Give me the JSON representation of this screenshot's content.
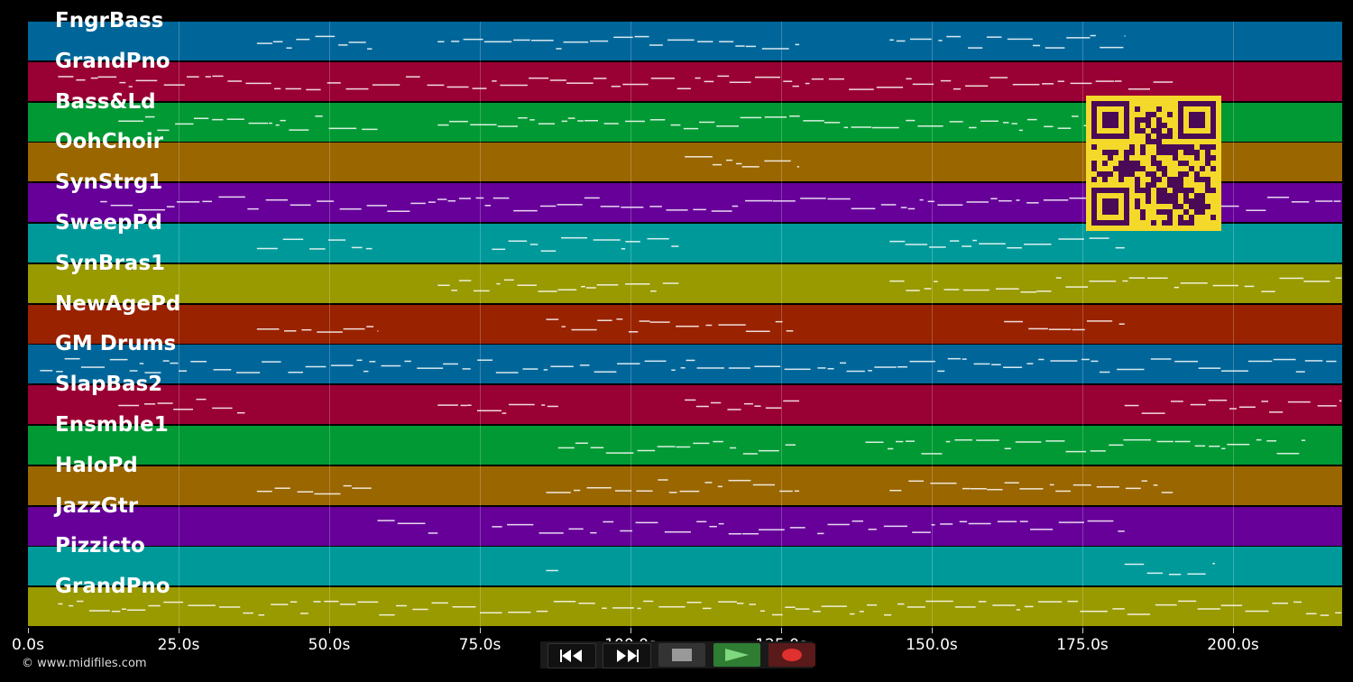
{
  "tracks": [
    {
      "name": "FngrBass",
      "color": "#006699"
    },
    {
      "name": "GrandPno",
      "color": "#990033"
    },
    {
      "name": "Bass&Ld",
      "color": "#009933"
    },
    {
      "name": "OohChoir",
      "color": "#996600"
    },
    {
      "name": "SynStrg1",
      "color": "#660099"
    },
    {
      "name": "SweepPd",
      "color": "#009999"
    },
    {
      "name": "SynBras1",
      "color": "#999900"
    },
    {
      "name": "NewAgePd",
      "color": "#992200"
    },
    {
      "name": "GM Drums",
      "color": "#006699"
    },
    {
      "name": "SlapBas2",
      "color": "#990033"
    },
    {
      "name": "Ensmble1",
      "color": "#009933"
    },
    {
      "name": "HaloPd",
      "color": "#996600"
    },
    {
      "name": "JazzGtr",
      "color": "#660099"
    },
    {
      "name": "Pizzicto",
      "color": "#009999"
    },
    {
      "name": "GrandPno",
      "color": "#999900"
    }
  ],
  "timeline": {
    "ticks": [
      "0.0s",
      "25.0s",
      "50.0s",
      "75.0s",
      "100.0s",
      "125.0s",
      "150.0s",
      "175.0s",
      "200.0s"
    ],
    "tick_seconds": [
      0,
      25,
      50,
      75,
      100,
      125,
      150,
      175,
      200
    ],
    "max_seconds": 218
  },
  "copyright": "© www.midifiles.com",
  "controls": {
    "rewind": "rewind-icon",
    "fast_forward": "fast-forward-icon",
    "stop": "stop-icon",
    "play": "play-icon",
    "record": "record-icon"
  },
  "colors": {
    "background": "#000000",
    "qr_background": "#f4d92b",
    "qr_foreground": "#4a0a55",
    "play_button": "#2e7d32",
    "record_button": "#5a1a1a"
  }
}
